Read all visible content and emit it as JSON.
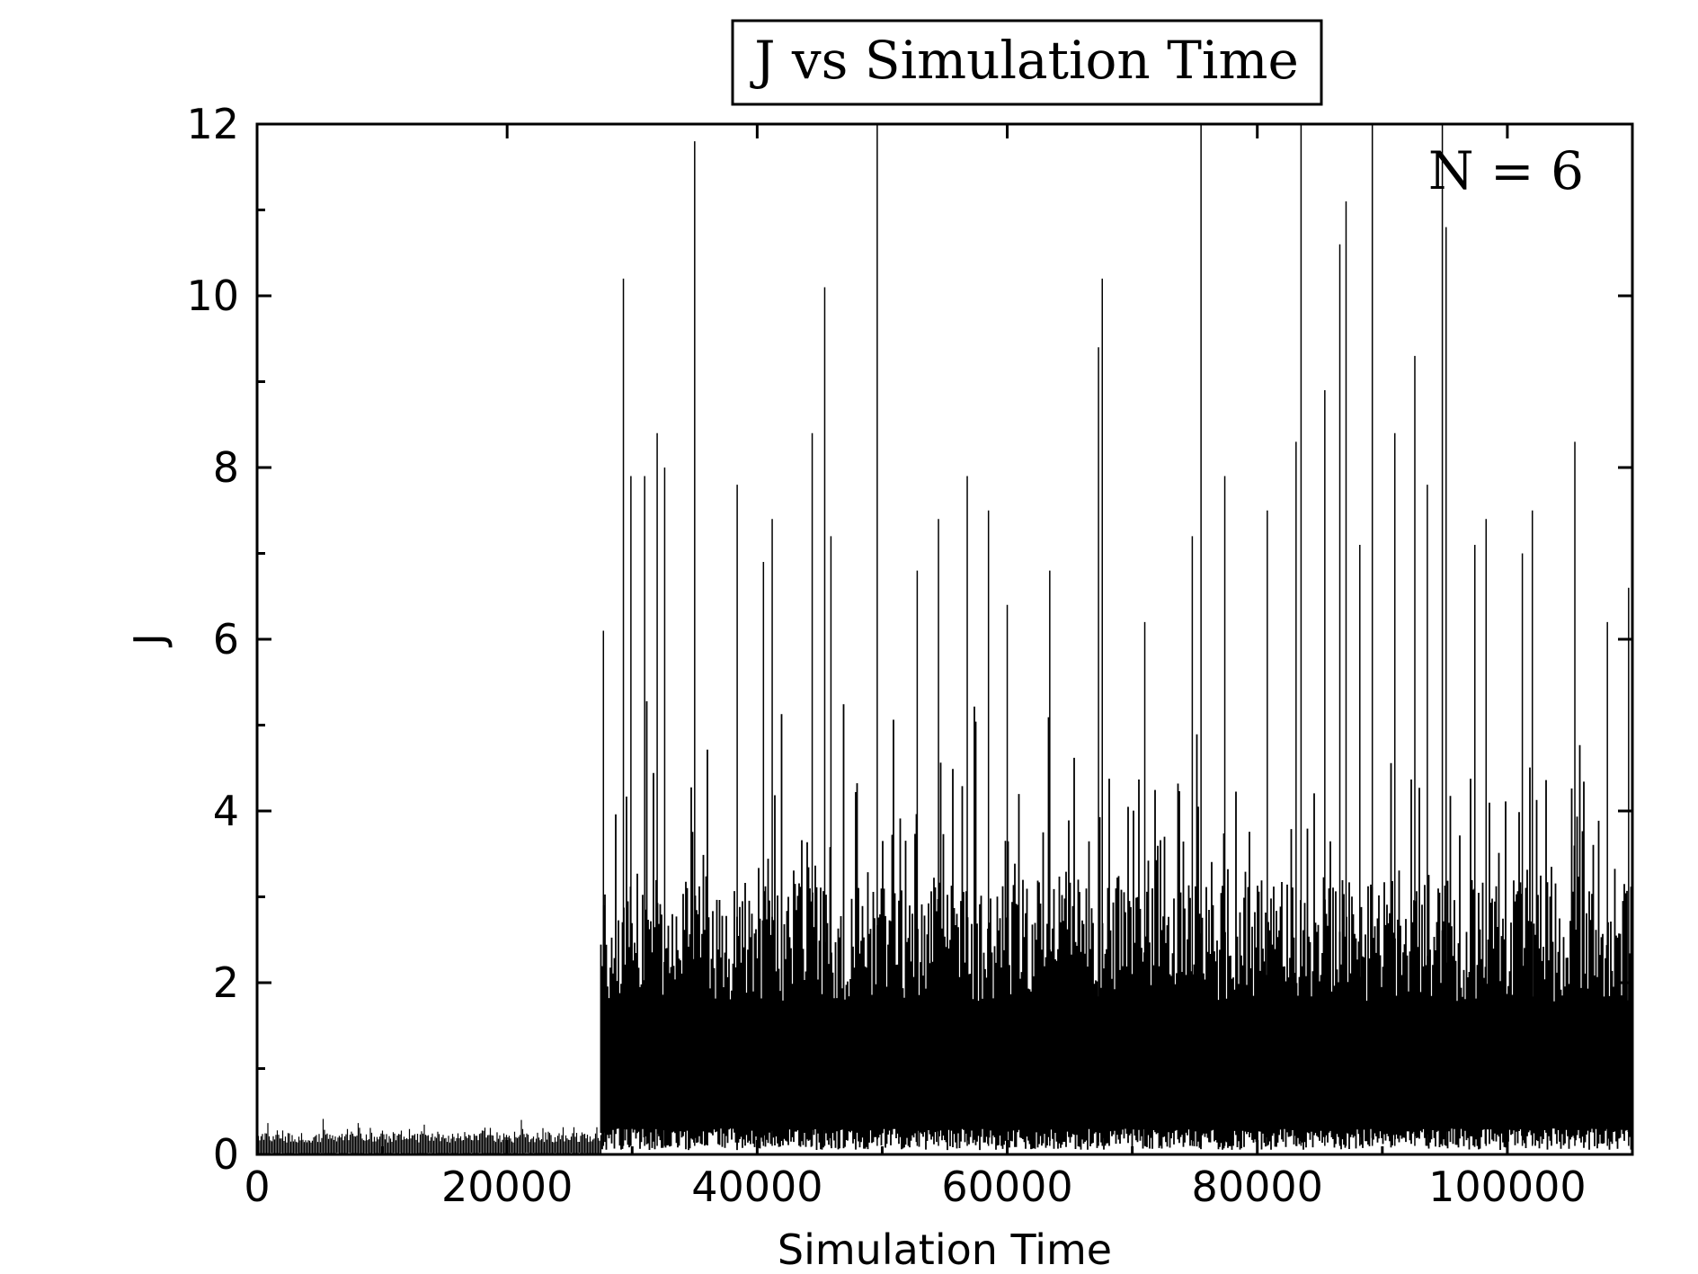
{
  "chart_data": {
    "type": "line",
    "title": "J vs Simulation Time",
    "annotation": "N = 6",
    "xlabel": "Simulation Time",
    "ylabel": "J",
    "xlim": [
      0,
      110000
    ],
    "ylim": [
      0,
      12
    ],
    "x_ticks": [
      0,
      20000,
      40000,
      60000,
      80000,
      100000
    ],
    "x_tick_labels": [
      "0",
      "20000",
      "40000",
      "60000",
      "80000",
      "100000"
    ],
    "y_ticks": [
      0,
      2,
      4,
      6,
      8,
      10,
      12
    ],
    "y_tick_labels": [
      "0",
      "2",
      "4",
      "6",
      "8",
      "10",
      "12"
    ],
    "y_minor_step": 1,
    "x_minor_step": 10000,
    "grid": false,
    "line_color": "#000000",
    "transition_x": 27500,
    "series": [
      {
        "name": "",
        "segments": [
          {
            "x_start": 0,
            "x_end": 27500,
            "low": 0.0,
            "high": 0.25,
            "peak_max": 0.45
          },
          {
            "x_start": 27500,
            "x_end": 110000,
            "low": 0.05,
            "high": 3.2,
            "peak_max": 12
          }
        ],
        "spikes": [
          [
            27700,
            6.1
          ],
          [
            29300,
            10.2
          ],
          [
            29900,
            7.9
          ],
          [
            31000,
            7.9
          ],
          [
            32000,
            8.4
          ],
          [
            32600,
            8.0
          ],
          [
            35000,
            11.8
          ],
          [
            38400,
            7.8
          ],
          [
            40500,
            6.9
          ],
          [
            41200,
            7.4
          ],
          [
            44400,
            8.4
          ],
          [
            45400,
            10.1
          ],
          [
            45900,
            7.2
          ],
          [
            49600,
            12
          ],
          [
            52800,
            6.8
          ],
          [
            54500,
            7.4
          ],
          [
            56800,
            7.9
          ],
          [
            58500,
            7.5
          ],
          [
            60000,
            6.4
          ],
          [
            63400,
            6.8
          ],
          [
            67300,
            9.4
          ],
          [
            67600,
            10.2
          ],
          [
            71000,
            6.2
          ],
          [
            74800,
            7.2
          ],
          [
            75500,
            12
          ],
          [
            77400,
            7.9
          ],
          [
            80800,
            7.5
          ],
          [
            83100,
            8.3
          ],
          [
            83500,
            12
          ],
          [
            85400,
            8.9
          ],
          [
            86600,
            10.6
          ],
          [
            87100,
            11.1
          ],
          [
            88200,
            7.1
          ],
          [
            89200,
            12
          ],
          [
            91000,
            8.4
          ],
          [
            92600,
            9.3
          ],
          [
            93600,
            7.8
          ],
          [
            94800,
            12
          ],
          [
            95100,
            10.8
          ],
          [
            97400,
            7.1
          ],
          [
            98300,
            7.4
          ],
          [
            101200,
            7.0
          ],
          [
            102000,
            7.5
          ],
          [
            105400,
            8.3
          ],
          [
            108000,
            6.2
          ],
          [
            109700,
            6.6
          ]
        ]
      }
    ]
  }
}
